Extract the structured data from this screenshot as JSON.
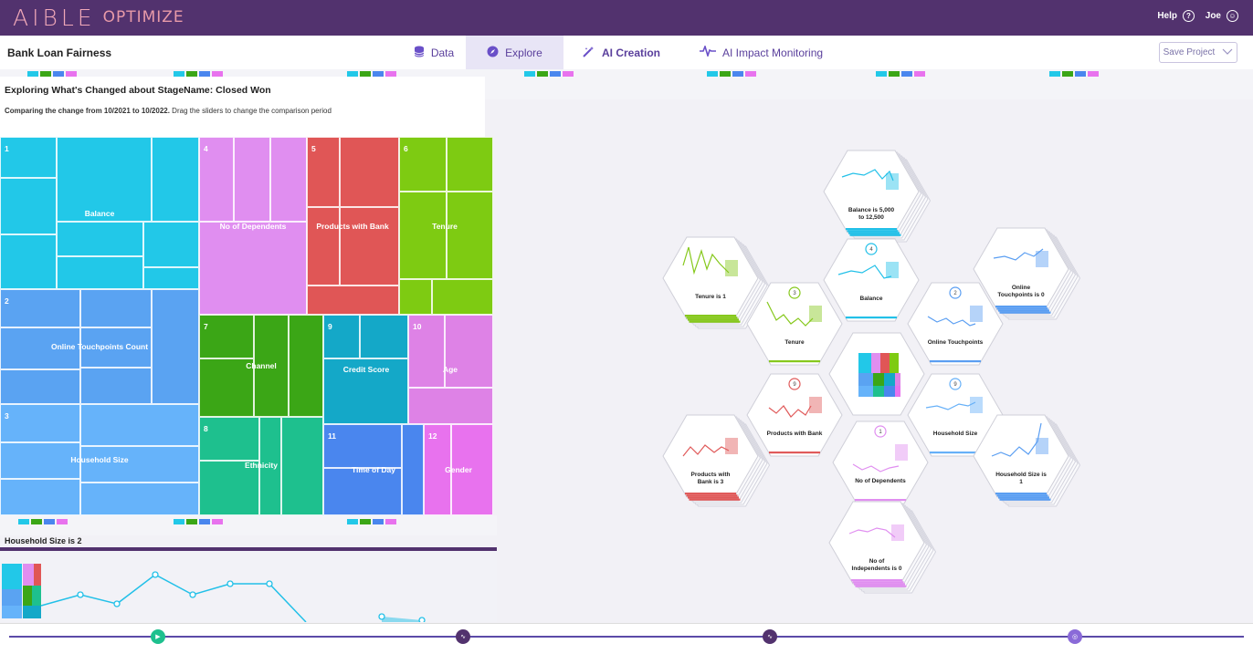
{
  "app": {
    "logo_main": "AIBLE",
    "logo_sub": "OPTIMIZE",
    "help_label": "Help",
    "help_icon": "?",
    "user_label": "Joe",
    "user_icon": "☺",
    "project_title": "Bank Loan Fairness",
    "save_label": "Save Project"
  },
  "tabs": [
    {
      "label": "Data",
      "icon": "database-icon",
      "glyph": "🗄"
    },
    {
      "label": "Explore",
      "icon": "compass-icon",
      "glyph": "◉"
    },
    {
      "label": "AI Creation",
      "icon": "magic-wand-icon",
      "glyph": "✦"
    },
    {
      "label": "AI Impact Monitoring",
      "icon": "pulse-icon",
      "glyph": "∿"
    }
  ],
  "explore": {
    "title": "Exploring What's Changed about StageName: Closed Won",
    "compare_bold": "Comparing the change from 10/2021 to 10/2022.",
    "compare_rest": " Drag the sliders to change the comparison period"
  },
  "treemap": {
    "groups": [
      {
        "num": "1",
        "label": "Balance",
        "color": "#22c8e8"
      },
      {
        "num": "2",
        "label": "Online Touchpoints Count",
        "color": "#5aa3f2"
      },
      {
        "num": "3",
        "label": "Household Size",
        "color": "#66b3fa"
      },
      {
        "num": "4",
        "label": "No of Dependents",
        "color": "#e08ef0"
      },
      {
        "num": "5",
        "label": "Products with Bank",
        "color": "#e05656"
      },
      {
        "num": "6",
        "label": "Tenure",
        "color": "#7ecb12"
      },
      {
        "num": "7",
        "label": "Channel",
        "color": "#3ba616"
      },
      {
        "num": "8",
        "label": "Ethnicity",
        "color": "#1ec08e"
      },
      {
        "num": "9",
        "label": "Credit Score",
        "color": "#14a8c8"
      },
      {
        "num": "10",
        "label": "Age",
        "color": "#de82e6"
      },
      {
        "num": "11",
        "label": "Time of Day",
        "color": "#4a86ee"
      },
      {
        "num": "12",
        "label": "Gender",
        "color": "#e872ee"
      }
    ]
  },
  "detail": {
    "title": "Household Size is 2"
  },
  "hexes": [
    {
      "label": "Balance is 5,000 to 12,500",
      "color": "#22c0e8"
    },
    {
      "label": "Tenure is 1",
      "color": "#86c81c"
    },
    {
      "label": "Balance",
      "color": "#22c0e8",
      "badge": "4"
    },
    {
      "label": "Online Touchpoints is 0",
      "color": "#5a9ef2"
    },
    {
      "label": "Tenure",
      "color": "#86c81c",
      "badge": "3"
    },
    {
      "label": "Online Touchpoints",
      "color": "#5a9ef2",
      "badge": "2"
    },
    {
      "label": "Products with Bank",
      "color": "#e05a5a",
      "badge": "9"
    },
    {
      "label": "Household Size",
      "color": "#66b0f8",
      "badge": "9"
    },
    {
      "label": "Products with Bank is 3",
      "color": "#e05a5a"
    },
    {
      "label": "Household Size is 1",
      "color": "#5a9ef2"
    },
    {
      "label": "No of Dependents",
      "color": "#e08ef0",
      "badge": "1"
    },
    {
      "label": "No of Independents is 0",
      "color": "#e08ef0"
    }
  ],
  "timeline": {
    "nodes": [
      "video-icon",
      "pulse-icon",
      "pulse-icon",
      "target-icon"
    ]
  }
}
